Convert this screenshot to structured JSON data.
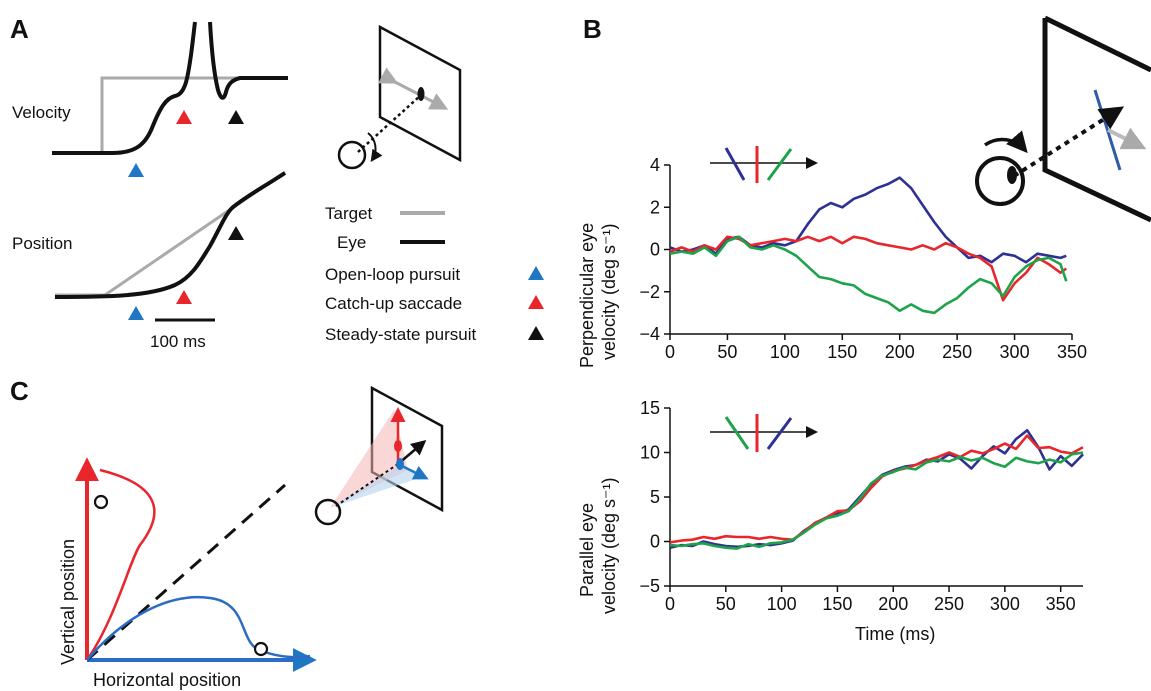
{
  "panels": {
    "a": "A",
    "b": "B",
    "c": "C"
  },
  "panel_a": {
    "velocity_label": "Velocity",
    "position_label": "Position",
    "scale_label": "100 ms",
    "legend": {
      "target": "Target",
      "eye": "Eye",
      "open_loop": "Open-loop pursuit",
      "catch_up": "Catch-up saccade",
      "steady_state": "Steady-state pursuit"
    },
    "colors": {
      "target": "#aaaaaa",
      "eye": "#111111",
      "open_loop": "#1f77c4",
      "catch_up": "#e8262c",
      "steady_state": "#111111"
    }
  },
  "panel_c": {
    "xlabel": "Horizontal position",
    "ylabel": "Vertical position",
    "colors": {
      "vertical": "#e8262c",
      "horizontal": "#2b6cc4"
    }
  },
  "colors": {
    "blue": "#2e3192",
    "red": "#e8262c",
    "green": "#1ea34a"
  },
  "chart_data": [
    {
      "type": "line",
      "ylabel": "Perpendicular eye velocity (deg s⁻¹)",
      "ylabel_line1": "Perpendicular eye",
      "ylabel_line2": "velocity (deg s⁻¹)",
      "xlim": [
        0,
        350
      ],
      "ylim": [
        -4,
        4
      ],
      "xticks": [
        "0",
        "50",
        "100",
        "150",
        "200",
        "250",
        "300",
        "350"
      ],
      "yticks": [
        "−4",
        "−2",
        "0",
        "2",
        "4"
      ],
      "series": [
        {
          "color": "#2e3192",
          "x": [
            0,
            10,
            20,
            30,
            40,
            50,
            60,
            70,
            80,
            90,
            100,
            110,
            120,
            130,
            140,
            150,
            160,
            170,
            180,
            190,
            200,
            210,
            220,
            230,
            240,
            250,
            260,
            270,
            280,
            290,
            300,
            310,
            320,
            330,
            340,
            345
          ],
          "values": [
            0.1,
            -0.1,
            0.0,
            0.2,
            -0.2,
            0.5,
            0.6,
            0.2,
            0.1,
            0.3,
            0.2,
            0.4,
            1.2,
            1.9,
            2.2,
            2.0,
            2.4,
            2.6,
            2.9,
            3.1,
            3.4,
            2.9,
            2.1,
            1.3,
            0.6,
            0.1,
            -0.4,
            -0.3,
            -0.6,
            -0.2,
            -0.3,
            -0.6,
            -0.2,
            -0.3,
            -0.4,
            -0.3
          ]
        },
        {
          "color": "#e8262c",
          "x": [
            0,
            10,
            20,
            30,
            40,
            50,
            60,
            70,
            80,
            90,
            100,
            110,
            120,
            130,
            140,
            150,
            160,
            170,
            180,
            190,
            200,
            210,
            220,
            230,
            240,
            250,
            260,
            270,
            280,
            290,
            300,
            310,
            320,
            330,
            340,
            345
          ],
          "values": [
            -0.1,
            0.1,
            -0.1,
            0.2,
            0.0,
            0.6,
            0.5,
            0.2,
            0.3,
            0.4,
            0.5,
            0.4,
            0.6,
            0.4,
            0.6,
            0.3,
            0.6,
            0.5,
            0.3,
            0.2,
            0.1,
            0.0,
            0.2,
            0.0,
            0.3,
            0.1,
            -0.2,
            -0.4,
            -0.8,
            -2.4,
            -1.6,
            -1.1,
            -0.4,
            -0.7,
            -1.1,
            -0.9
          ]
        },
        {
          "color": "#1ea34a",
          "x": [
            0,
            10,
            20,
            30,
            40,
            50,
            60,
            70,
            80,
            90,
            100,
            110,
            120,
            130,
            140,
            150,
            160,
            170,
            180,
            190,
            200,
            210,
            220,
            230,
            240,
            250,
            260,
            270,
            280,
            290,
            300,
            310,
            320,
            330,
            340,
            345
          ],
          "values": [
            -0.2,
            -0.1,
            -0.2,
            0.1,
            -0.3,
            0.4,
            0.6,
            0.1,
            0.0,
            0.2,
            0.0,
            -0.3,
            -0.8,
            -1.3,
            -1.4,
            -1.6,
            -1.7,
            -2.1,
            -2.3,
            -2.5,
            -2.9,
            -2.6,
            -2.9,
            -3.0,
            -2.6,
            -2.3,
            -1.8,
            -1.4,
            -1.6,
            -2.2,
            -1.3,
            -0.8,
            -0.5,
            -0.4,
            -0.7,
            -1.5
          ]
        }
      ]
    },
    {
      "type": "line",
      "xlabel": "Time (ms)",
      "ylabel": "Parallel eye velocity (deg s⁻¹)",
      "ylabel_line1": "Parallel eye",
      "ylabel_line2": "velocity (deg s⁻¹)",
      "xlim": [
        0,
        370
      ],
      "ylim": [
        -5,
        15
      ],
      "xticks": [
        "0",
        "50",
        "100",
        "150",
        "200",
        "250",
        "300",
        "350"
      ],
      "yticks": [
        "−5",
        "0",
        "5",
        "10",
        "15"
      ],
      "series": [
        {
          "color": "#2e3192",
          "x": [
            0,
            10,
            20,
            30,
            40,
            50,
            60,
            70,
            80,
            90,
            100,
            110,
            120,
            130,
            140,
            150,
            160,
            170,
            180,
            190,
            200,
            210,
            220,
            230,
            240,
            250,
            260,
            270,
            280,
            290,
            300,
            310,
            320,
            330,
            340,
            350,
            360,
            370
          ],
          "values": [
            -0.7,
            -0.4,
            -0.5,
            0.0,
            -0.3,
            -0.5,
            -0.6,
            -0.5,
            -0.3,
            -0.4,
            -0.2,
            0.1,
            1.2,
            2.0,
            2.7,
            3.1,
            3.6,
            5.0,
            6.4,
            7.5,
            8.0,
            8.4,
            8.6,
            9.2,
            9.0,
            9.8,
            9.3,
            8.2,
            9.6,
            10.7,
            9.9,
            11.5,
            12.5,
            10.6,
            8.1,
            9.6,
            8.5,
            9.8
          ]
        },
        {
          "color": "#e8262c",
          "x": [
            0,
            10,
            20,
            30,
            40,
            50,
            60,
            70,
            80,
            90,
            100,
            110,
            120,
            130,
            140,
            150,
            160,
            170,
            180,
            190,
            200,
            210,
            220,
            230,
            240,
            250,
            260,
            270,
            280,
            290,
            300,
            310,
            320,
            330,
            340,
            350,
            360,
            370
          ],
          "values": [
            -0.1,
            0.1,
            0.2,
            0.5,
            0.3,
            0.6,
            0.5,
            0.5,
            0.3,
            0.5,
            0.3,
            0.2,
            1.1,
            2.1,
            2.7,
            3.4,
            3.5,
            4.5,
            6.0,
            7.3,
            7.9,
            8.2,
            8.6,
            9.1,
            9.5,
            10.0,
            9.5,
            10.2,
            9.9,
            10.4,
            11.0,
            10.4,
            11.9,
            10.5,
            10.6,
            10.1,
            9.9,
            10.6
          ]
        },
        {
          "color": "#1ea34a",
          "x": [
            0,
            10,
            20,
            30,
            40,
            50,
            60,
            70,
            80,
            90,
            100,
            110,
            120,
            130,
            140,
            150,
            160,
            170,
            180,
            190,
            200,
            210,
            220,
            230,
            240,
            250,
            260,
            270,
            280,
            290,
            300,
            310,
            320,
            330,
            340,
            350,
            360,
            370
          ],
          "values": [
            -0.4,
            -0.5,
            -0.3,
            -0.2,
            -0.5,
            -0.7,
            -0.8,
            -0.3,
            -0.6,
            -0.2,
            -0.1,
            0.2,
            1.0,
            1.9,
            2.6,
            2.9,
            3.4,
            4.8,
            6.5,
            7.4,
            7.8,
            8.3,
            8.1,
            8.9,
            9.2,
            9.0,
            9.5,
            9.1,
            9.4,
            8.8,
            8.4,
            9.4,
            9.0,
            8.8,
            9.2,
            8.9,
            9.8,
            10.0
          ]
        }
      ]
    }
  ]
}
